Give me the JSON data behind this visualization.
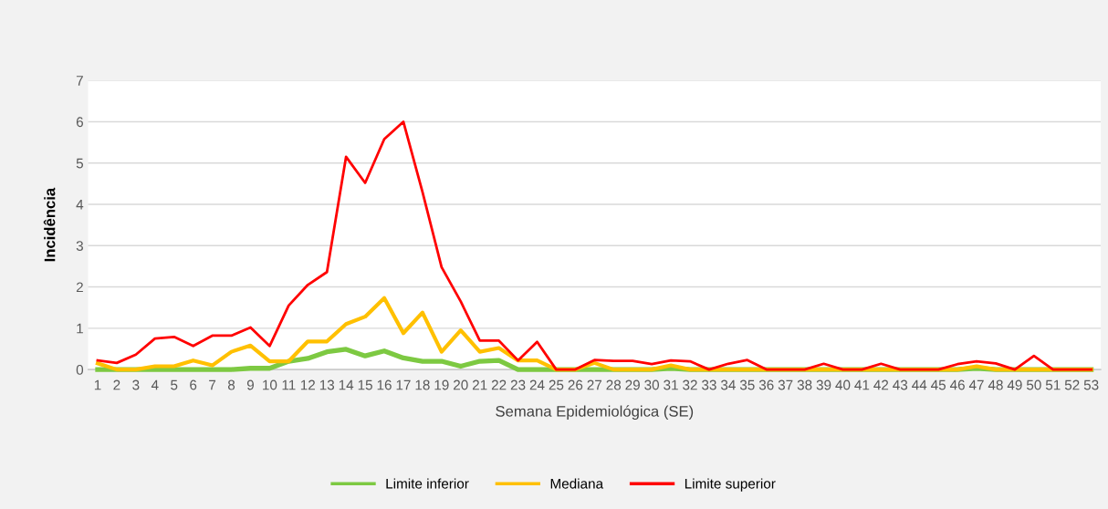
{
  "chart_data": {
    "type": "line",
    "xlabel": "Semana Epidemiológica (SE)",
    "ylabel": "Incidência",
    "categories": [
      "1",
      "2",
      "3",
      "4",
      "5",
      "6",
      "7",
      "8",
      "9",
      "10",
      "11",
      "12",
      "13",
      "14",
      "15",
      "16",
      "17",
      "18",
      "19",
      "20",
      "21",
      "22",
      "23",
      "24",
      "25",
      "26",
      "27",
      "28",
      "29",
      "30",
      "31",
      "32",
      "33",
      "34",
      "35",
      "36",
      "37",
      "38",
      "39",
      "40",
      "41",
      "42",
      "43",
      "44",
      "45",
      "46",
      "47",
      "48",
      "49",
      "50",
      "51",
      "52",
      "53"
    ],
    "series": [
      {
        "name": "Limite inferior",
        "color": "#7dc942",
        "values": [
          0,
          0,
          0,
          0,
          0,
          0,
          0,
          0,
          0.03,
          0.03,
          0.2,
          0.27,
          0.43,
          0.49,
          0.33,
          0.45,
          0.28,
          0.2,
          0.2,
          0.08,
          0.2,
          0.22,
          0,
          0,
          0,
          0,
          0,
          0,
          0,
          0,
          0.03,
          0,
          0,
          0,
          0,
          0,
          0,
          0,
          0,
          0,
          0,
          0,
          0,
          0,
          0,
          0,
          0.03,
          0,
          0,
          0,
          0,
          0,
          0
        ]
      },
      {
        "name": "Mediana",
        "color": "#ffc000",
        "values": [
          0.15,
          0,
          0,
          0.08,
          0.08,
          0.22,
          0.1,
          0.43,
          0.58,
          0.2,
          0.2,
          0.68,
          0.68,
          1.1,
          1.28,
          1.73,
          0.88,
          1.38,
          0.43,
          0.95,
          0.43,
          0.52,
          0.22,
          0.22,
          0,
          0,
          0.16,
          0,
          0,
          0,
          0.1,
          0,
          0,
          0,
          0,
          0,
          0,
          0,
          0,
          0,
          0,
          0,
          0,
          0,
          0,
          0,
          0.08,
          0,
          0,
          0,
          0,
          0,
          0
        ]
      },
      {
        "name": "Limite superior",
        "color": "#ff0000",
        "values": [
          0.22,
          0.16,
          0.36,
          0.75,
          0.79,
          0.57,
          0.82,
          0.82,
          1.02,
          0.57,
          1.55,
          2.05,
          2.36,
          5.15,
          4.52,
          5.58,
          6.0,
          4.3,
          2.48,
          1.65,
          0.7,
          0.7,
          0.22,
          0.67,
          0,
          0,
          0.23,
          0.21,
          0.21,
          0.13,
          0.22,
          0.2,
          0,
          0.14,
          0.23,
          0,
          0,
          0,
          0.14,
          0,
          0,
          0.14,
          0,
          0,
          0,
          0.13,
          0.2,
          0.15,
          0,
          0.33,
          0,
          0,
          0
        ]
      }
    ],
    "ylim": [
      0,
      7
    ],
    "yticks": [
      0,
      1,
      2,
      3,
      4,
      5,
      6,
      7
    ],
    "grid": "y",
    "legend": "bottom",
    "marker": "none",
    "line_style": "solid"
  }
}
